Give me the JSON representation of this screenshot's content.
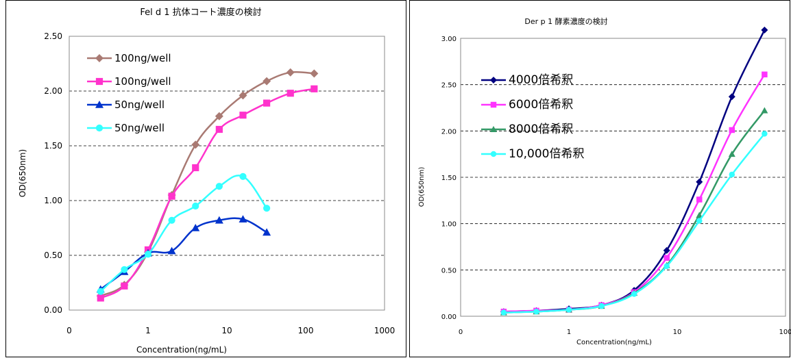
{
  "chart_data": [
    {
      "type": "line",
      "title": "Fel d 1 抗体コート濃度の検討",
      "xlabel": "Concentration(ng/mL)",
      "ylabel": "OD(650nm)",
      "xscale": "log",
      "xlim": [
        0.1,
        1000
      ],
      "ylim": [
        0,
        2.5
      ],
      "xticks": [
        "0",
        "1",
        "10",
        "100",
        "1000"
      ],
      "yticks": [
        "0.00",
        "0.50",
        "1.00",
        "1.50",
        "2.00",
        "2.50"
      ],
      "grid": "horizontal dashed",
      "legend_position": "top-left",
      "series": [
        {
          "name": "100ng/well",
          "color": "#a97a73",
          "marker": "diamond",
          "x": [
            0.25,
            0.5,
            1,
            2,
            4,
            8,
            16,
            32,
            64,
            128
          ],
          "y": [
            0.13,
            0.23,
            0.53,
            1.05,
            1.51,
            1.77,
            1.96,
            2.09,
            2.17,
            2.16
          ]
        },
        {
          "name": "100ng/well",
          "color": "#ff33cc",
          "marker": "square",
          "x": [
            0.25,
            0.5,
            1,
            2,
            4,
            8,
            16,
            32,
            64,
            128
          ],
          "y": [
            0.11,
            0.22,
            0.55,
            1.04,
            1.3,
            1.65,
            1.78,
            1.89,
            1.98,
            2.02
          ]
        },
        {
          "name": "50ng/well",
          "color": "#0033cc",
          "marker": "triangle",
          "x": [
            0.25,
            0.5,
            1,
            2,
            4,
            8,
            16,
            32
          ],
          "y": [
            0.19,
            0.35,
            0.52,
            0.54,
            0.75,
            0.82,
            0.83,
            0.71
          ]
        },
        {
          "name": "50ng/well",
          "color": "#33ffff",
          "marker": "circle",
          "x": [
            0.25,
            0.5,
            1,
            2,
            4,
            8,
            16,
            32
          ],
          "y": [
            0.17,
            0.37,
            0.51,
            0.82,
            0.95,
            1.13,
            1.22,
            0.93
          ]
        }
      ]
    },
    {
      "type": "line",
      "title": "Der p 1 酵素濃度の検討",
      "xlabel": "Concentration(ng/mL)",
      "ylabel": "OD(650nm)",
      "xscale": "log",
      "xlim": [
        0.1,
        100
      ],
      "ylim": [
        0,
        3.0
      ],
      "xticks": [
        "0",
        "1",
        "10",
        "100"
      ],
      "yticks": [
        "0.00",
        "0.50",
        "1.00",
        "1.50",
        "2.00",
        "2.50",
        "3.00"
      ],
      "grid": "horizontal dashed",
      "legend_position": "top-left",
      "series": [
        {
          "name": "4000倍希釈",
          "color": "#000080",
          "marker": "diamond",
          "x": [
            0.25,
            0.5,
            1,
            2,
            4,
            8,
            16,
            32,
            64
          ],
          "y": [
            0.05,
            0.06,
            0.08,
            0.12,
            0.28,
            0.71,
            1.45,
            2.37,
            3.09
          ]
        },
        {
          "name": "6000倍希釈",
          "color": "#ff33ff",
          "marker": "square",
          "x": [
            0.25,
            0.5,
            1,
            2,
            4,
            8,
            16,
            32,
            64
          ],
          "y": [
            0.05,
            0.06,
            0.07,
            0.12,
            0.26,
            0.63,
            1.26,
            2.01,
            2.61
          ]
        },
        {
          "name": "8000倍希釈",
          "color": "#339966",
          "marker": "triangle",
          "x": [
            0.25,
            0.5,
            1,
            2,
            4,
            8,
            16,
            32,
            64
          ],
          "y": [
            0.04,
            0.05,
            0.07,
            0.11,
            0.25,
            0.55,
            1.09,
            1.75,
            2.22
          ]
        },
        {
          "name": "10,000倍希釈",
          "color": "#33ffff",
          "marker": "circle",
          "x": [
            0.25,
            0.5,
            1,
            2,
            4,
            8,
            16,
            32,
            64
          ],
          "y": [
            0.04,
            0.05,
            0.07,
            0.11,
            0.24,
            0.54,
            1.03,
            1.53,
            1.97
          ]
        }
      ]
    }
  ]
}
